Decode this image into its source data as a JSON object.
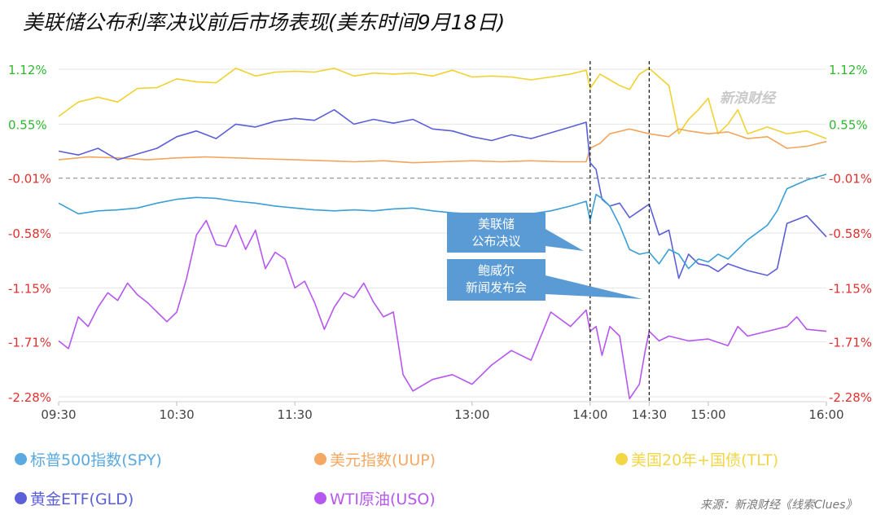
{
  "title": "美联储公布利率决议前后市场表现(美东时间9月18日)",
  "watermark": "新浪财经",
  "source": "来源：新浪财经《线索Clues》",
  "colors": {
    "spy": "#3a9fd6",
    "uup": "#f2a55c",
    "tlt": "#f0d232",
    "gld": "#5b5fd8",
    "uso": "#b657f0",
    "left_axis_green": "#2eb82e",
    "left_axis_red": "#e03030",
    "callout_bg": "#5b9bd5"
  },
  "legend": [
    {
      "key": "spy",
      "label": "标普500指数(SPY)",
      "color": "#5aa9e0"
    },
    {
      "key": "uup",
      "label": "美元指数(UUP)",
      "color": "#f5a862"
    },
    {
      "key": "tlt",
      "label": "美国20年+国债(TLT)",
      "color": "#f2d646"
    },
    {
      "key": "gld",
      "label": "黄金ETF(GLD)",
      "color": "#5b5fd8"
    },
    {
      "key": "uso",
      "label": "WTI原油(USO)",
      "color": "#b657f0"
    }
  ],
  "chart_data": {
    "type": "line",
    "title": "美联储公布利率决议前后市场表现(美东时间9月18日)",
    "xlabel": "",
    "ylabel": "",
    "xlim": [
      "09:30",
      "16:00"
    ],
    "ylim": [
      -2.28,
      1.12
    ],
    "x_ticks": [
      "09:30",
      "10:30",
      "11:30",
      "13:00",
      "14:00",
      "14:30",
      "15:00",
      "16:00"
    ],
    "y_ticks": [
      "1.12%",
      "0.55%",
      "-0.01%",
      "-0.58%",
      "-1.15%",
      "-1.71%",
      "-2.28%"
    ],
    "y_tick_values": [
      1.12,
      0.55,
      -0.01,
      -0.58,
      -1.15,
      -1.71,
      -2.28
    ],
    "zero_line": -0.01,
    "vlines": [
      {
        "time": "14:00",
        "label": "美联储 公布决议",
        "lines": [
          "美联储",
          "公布决议"
        ]
      },
      {
        "time": "14:30",
        "label": "鲍威尔 新闻发布会",
        "lines": [
          "鲍威尔",
          "新闻发布会"
        ]
      }
    ],
    "series": [
      {
        "key": "tlt",
        "name": "美国20年+国债(TLT)",
        "points": [
          [
            "09:30",
            0.63
          ],
          [
            "09:40",
            0.78
          ],
          [
            "09:50",
            0.83
          ],
          [
            "10:00",
            0.78
          ],
          [
            "10:10",
            0.92
          ],
          [
            "10:20",
            0.93
          ],
          [
            "10:30",
            1.02
          ],
          [
            "10:40",
            0.99
          ],
          [
            "10:50",
            0.98
          ],
          [
            "11:00",
            1.13
          ],
          [
            "11:10",
            1.05
          ],
          [
            "11:20",
            1.09
          ],
          [
            "11:30",
            1.1
          ],
          [
            "11:40",
            1.09
          ],
          [
            "11:50",
            1.13
          ],
          [
            "12:00",
            1.05
          ],
          [
            "12:10",
            1.08
          ],
          [
            "12:20",
            1.07
          ],
          [
            "12:30",
            1.08
          ],
          [
            "12:40",
            1.05
          ],
          [
            "12:50",
            1.11
          ],
          [
            "13:00",
            1.04
          ],
          [
            "13:10",
            1.05
          ],
          [
            "13:20",
            1.04
          ],
          [
            "13:30",
            1.01
          ],
          [
            "13:40",
            1.04
          ],
          [
            "13:50",
            1.07
          ],
          [
            "13:58",
            1.11
          ],
          [
            "14:00",
            0.92
          ],
          [
            "14:05",
            1.07
          ],
          [
            "14:10",
            1.01
          ],
          [
            "14:15",
            0.95
          ],
          [
            "14:20",
            0.91
          ],
          [
            "14:25",
            1.07
          ],
          [
            "14:30",
            1.13
          ],
          [
            "14:35",
            1.04
          ],
          [
            "14:40",
            0.95
          ],
          [
            "14:45",
            0.45
          ],
          [
            "14:50",
            0.6
          ],
          [
            "14:55",
            0.7
          ],
          [
            "15:00",
            0.82
          ],
          [
            "15:05",
            0.45
          ],
          [
            "15:10",
            0.55
          ],
          [
            "15:15",
            0.7
          ],
          [
            "15:20",
            0.45
          ],
          [
            "15:30",
            0.52
          ],
          [
            "15:40",
            0.45
          ],
          [
            "15:50",
            0.48
          ],
          [
            "16:00",
            0.4
          ]
        ]
      },
      {
        "key": "uup",
        "name": "美元指数(UUP)",
        "points": [
          [
            "09:30",
            0.18
          ],
          [
            "09:45",
            0.21
          ],
          [
            "10:00",
            0.2
          ],
          [
            "10:15",
            0.18
          ],
          [
            "10:30",
            0.2
          ],
          [
            "10:45",
            0.21
          ],
          [
            "11:00",
            0.2
          ],
          [
            "11:15",
            0.19
          ],
          [
            "11:30",
            0.18
          ],
          [
            "11:45",
            0.17
          ],
          [
            "12:00",
            0.16
          ],
          [
            "12:15",
            0.17
          ],
          [
            "12:30",
            0.15
          ],
          [
            "12:45",
            0.16
          ],
          [
            "13:00",
            0.17
          ],
          [
            "13:15",
            0.16
          ],
          [
            "13:30",
            0.17
          ],
          [
            "13:45",
            0.16
          ],
          [
            "13:58",
            0.16
          ],
          [
            "14:00",
            0.3
          ],
          [
            "14:05",
            0.35
          ],
          [
            "14:10",
            0.45
          ],
          [
            "14:20",
            0.5
          ],
          [
            "14:30",
            0.45
          ],
          [
            "14:40",
            0.42
          ],
          [
            "14:45",
            0.5
          ],
          [
            "14:50",
            0.48
          ],
          [
            "15:00",
            0.45
          ],
          [
            "15:10",
            0.47
          ],
          [
            "15:20",
            0.4
          ],
          [
            "15:30",
            0.42
          ],
          [
            "15:40",
            0.3
          ],
          [
            "15:50",
            0.32
          ],
          [
            "16:00",
            0.37
          ]
        ]
      },
      {
        "key": "gld",
        "name": "黄金ETF(GLD)",
        "points": [
          [
            "09:30",
            0.27
          ],
          [
            "09:40",
            0.23
          ],
          [
            "09:50",
            0.3
          ],
          [
            "10:00",
            0.18
          ],
          [
            "10:10",
            0.24
          ],
          [
            "10:20",
            0.3
          ],
          [
            "10:30",
            0.42
          ],
          [
            "10:40",
            0.48
          ],
          [
            "10:50",
            0.4
          ],
          [
            "11:00",
            0.55
          ],
          [
            "11:10",
            0.52
          ],
          [
            "11:20",
            0.58
          ],
          [
            "11:30",
            0.61
          ],
          [
            "11:40",
            0.59
          ],
          [
            "11:50",
            0.7
          ],
          [
            "12:00",
            0.55
          ],
          [
            "12:10",
            0.6
          ],
          [
            "12:20",
            0.56
          ],
          [
            "12:30",
            0.6
          ],
          [
            "12:40",
            0.5
          ],
          [
            "12:50",
            0.48
          ],
          [
            "13:00",
            0.42
          ],
          [
            "13:10",
            0.38
          ],
          [
            "13:20",
            0.44
          ],
          [
            "13:30",
            0.4
          ],
          [
            "13:40",
            0.46
          ],
          [
            "13:50",
            0.52
          ],
          [
            "13:58",
            0.57
          ],
          [
            "14:00",
            0.15
          ],
          [
            "14:03",
            0.08
          ],
          [
            "14:06",
            -0.23
          ],
          [
            "14:10",
            -0.3
          ],
          [
            "14:15",
            -0.27
          ],
          [
            "14:20",
            -0.42
          ],
          [
            "14:25",
            -0.35
          ],
          [
            "14:30",
            -0.28
          ],
          [
            "14:35",
            -0.6
          ],
          [
            "14:40",
            -0.55
          ],
          [
            "14:45",
            -1.05
          ],
          [
            "14:50",
            -0.8
          ],
          [
            "14:55",
            -0.9
          ],
          [
            "15:00",
            -0.92
          ],
          [
            "15:05",
            -0.98
          ],
          [
            "15:10",
            -0.9
          ],
          [
            "15:20",
            -0.97
          ],
          [
            "15:30",
            -1.02
          ],
          [
            "15:35",
            -0.95
          ],
          [
            "15:40",
            -0.48
          ],
          [
            "15:50",
            -0.4
          ],
          [
            "16:00",
            -0.62
          ]
        ]
      },
      {
        "key": "spy",
        "name": "标普500指数(SPY)",
        "points": [
          [
            "09:30",
            -0.27
          ],
          [
            "09:40",
            -0.38
          ],
          [
            "09:50",
            -0.35
          ],
          [
            "10:00",
            -0.34
          ],
          [
            "10:10",
            -0.32
          ],
          [
            "10:20",
            -0.27
          ],
          [
            "10:30",
            -0.23
          ],
          [
            "10:40",
            -0.21
          ],
          [
            "10:50",
            -0.22
          ],
          [
            "11:00",
            -0.25
          ],
          [
            "11:10",
            -0.27
          ],
          [
            "11:20",
            -0.3
          ],
          [
            "11:30",
            -0.32
          ],
          [
            "11:40",
            -0.34
          ],
          [
            "11:50",
            -0.35
          ],
          [
            "12:00",
            -0.34
          ],
          [
            "12:10",
            -0.35
          ],
          [
            "12:20",
            -0.33
          ],
          [
            "12:30",
            -0.32
          ],
          [
            "12:40",
            -0.35
          ],
          [
            "12:50",
            -0.37
          ],
          [
            "13:00",
            -0.38
          ],
          [
            "13:10",
            -0.39
          ],
          [
            "13:20",
            -0.4
          ],
          [
            "13:30",
            -0.38
          ],
          [
            "13:40",
            -0.35
          ],
          [
            "13:50",
            -0.3
          ],
          [
            "13:58",
            -0.25
          ],
          [
            "14:00",
            -0.45
          ],
          [
            "14:03",
            -0.18
          ],
          [
            "14:06",
            -0.22
          ],
          [
            "14:10",
            -0.3
          ],
          [
            "14:15",
            -0.5
          ],
          [
            "14:20",
            -0.75
          ],
          [
            "14:25",
            -0.8
          ],
          [
            "14:30",
            -0.78
          ],
          [
            "14:35",
            -0.9
          ],
          [
            "14:40",
            -0.75
          ],
          [
            "14:45",
            -0.8
          ],
          [
            "14:50",
            -0.95
          ],
          [
            "14:55",
            -0.85
          ],
          [
            "15:00",
            -0.88
          ],
          [
            "15:05",
            -0.8
          ],
          [
            "15:10",
            -0.85
          ],
          [
            "15:20",
            -0.65
          ],
          [
            "15:30",
            -0.5
          ],
          [
            "15:35",
            -0.35
          ],
          [
            "15:40",
            -0.12
          ],
          [
            "15:50",
            -0.03
          ],
          [
            "16:00",
            0.03
          ]
        ]
      },
      {
        "key": "uso",
        "name": "WTI原油(USO)",
        "points": [
          [
            "09:30",
            -1.7
          ],
          [
            "09:35",
            -1.78
          ],
          [
            "09:40",
            -1.45
          ],
          [
            "09:45",
            -1.55
          ],
          [
            "09:50",
            -1.35
          ],
          [
            "09:55",
            -1.2
          ],
          [
            "10:00",
            -1.28
          ],
          [
            "10:05",
            -1.1
          ],
          [
            "10:10",
            -1.22
          ],
          [
            "10:15",
            -1.3
          ],
          [
            "10:20",
            -1.4
          ],
          [
            "10:25",
            -1.5
          ],
          [
            "10:30",
            -1.4
          ],
          [
            "10:35",
            -1.05
          ],
          [
            "10:40",
            -0.6
          ],
          [
            "10:45",
            -0.45
          ],
          [
            "10:50",
            -0.7
          ],
          [
            "10:55",
            -0.72
          ],
          [
            "11:00",
            -0.5
          ],
          [
            "11:05",
            -0.75
          ],
          [
            "11:10",
            -0.55
          ],
          [
            "11:15",
            -0.95
          ],
          [
            "11:20",
            -0.78
          ],
          [
            "11:25",
            -0.85
          ],
          [
            "11:30",
            -1.15
          ],
          [
            "11:35",
            -1.08
          ],
          [
            "11:40",
            -1.3
          ],
          [
            "11:45",
            -1.58
          ],
          [
            "11:50",
            -1.35
          ],
          [
            "11:55",
            -1.2
          ],
          [
            "12:00",
            -1.25
          ],
          [
            "12:05",
            -1.1
          ],
          [
            "12:10",
            -1.3
          ],
          [
            "12:15",
            -1.45
          ],
          [
            "12:20",
            -1.4
          ],
          [
            "12:25",
            -2.05
          ],
          [
            "12:30",
            -2.22
          ],
          [
            "12:40",
            -2.1
          ],
          [
            "12:50",
            -2.05
          ],
          [
            "13:00",
            -2.15
          ],
          [
            "13:10",
            -1.95
          ],
          [
            "13:20",
            -1.8
          ],
          [
            "13:30",
            -1.9
          ],
          [
            "13:40",
            -1.4
          ],
          [
            "13:50",
            -1.55
          ],
          [
            "13:58",
            -1.38
          ],
          [
            "14:00",
            -1.6
          ],
          [
            "14:03",
            -1.55
          ],
          [
            "14:06",
            -1.85
          ],
          [
            "14:10",
            -1.55
          ],
          [
            "14:15",
            -1.65
          ],
          [
            "14:20",
            -2.3
          ],
          [
            "14:25",
            -2.15
          ],
          [
            "14:28",
            -1.8
          ],
          [
            "14:30",
            -1.6
          ],
          [
            "14:35",
            -1.7
          ],
          [
            "14:40",
            -1.65
          ],
          [
            "14:50",
            -1.7
          ],
          [
            "15:00",
            -1.68
          ],
          [
            "15:10",
            -1.75
          ],
          [
            "15:15",
            -1.55
          ],
          [
            "15:20",
            -1.65
          ],
          [
            "15:30",
            -1.6
          ],
          [
            "15:40",
            -1.55
          ],
          [
            "15:45",
            -1.45
          ],
          [
            "15:50",
            -1.58
          ],
          [
            "16:00",
            -1.6
          ]
        ]
      }
    ]
  }
}
